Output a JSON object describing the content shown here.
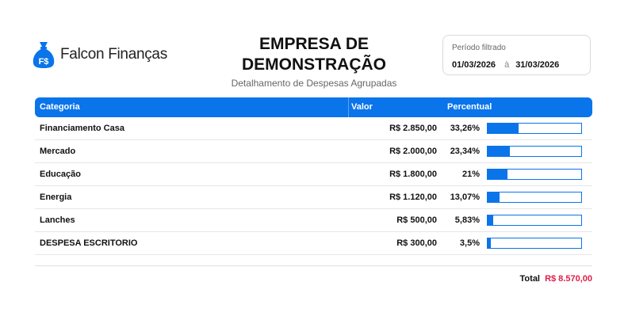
{
  "brand": {
    "name": "Falcon Finanças",
    "icon": "money-bag-icon",
    "color": "#0a74ea"
  },
  "report": {
    "company": "EMPRESA DE DEMONSTRAÇÃO",
    "subtitle": "Detalhamento de Despesas Agrupadas"
  },
  "period": {
    "label": "Período filtrado",
    "start": "01/03/2026",
    "separator": "à",
    "end": "31/03/2026"
  },
  "table": {
    "headers": {
      "category": "Categoria",
      "value": "Valor",
      "percent": "Percentual"
    },
    "rows": [
      {
        "category": "Financiamento Casa",
        "value": "R$ 2.850,00",
        "percent": "33,26%",
        "share": 33.26
      },
      {
        "category": "Mercado",
        "value": "R$ 2.000,00",
        "percent": "23,34%",
        "share": 23.34
      },
      {
        "category": "Educação",
        "value": "R$ 1.800,00",
        "percent": "21%",
        "share": 21
      },
      {
        "category": "Energia",
        "value": "R$ 1.120,00",
        "percent": "13,07%",
        "share": 13.07
      },
      {
        "category": "Lanches",
        "value": "R$ 500,00",
        "percent": "5,83%",
        "share": 5.83
      },
      {
        "category": "DESPESA ESCRITORIO",
        "value": "R$ 300,00",
        "percent": "3,5%",
        "share": 3.5
      }
    ]
  },
  "total": {
    "label": "Total",
    "value": "R$ 8.570,00",
    "color": "#e11d48"
  },
  "colors": {
    "accent": "#0a74ea",
    "text": "#111111",
    "muted": "#666666"
  }
}
